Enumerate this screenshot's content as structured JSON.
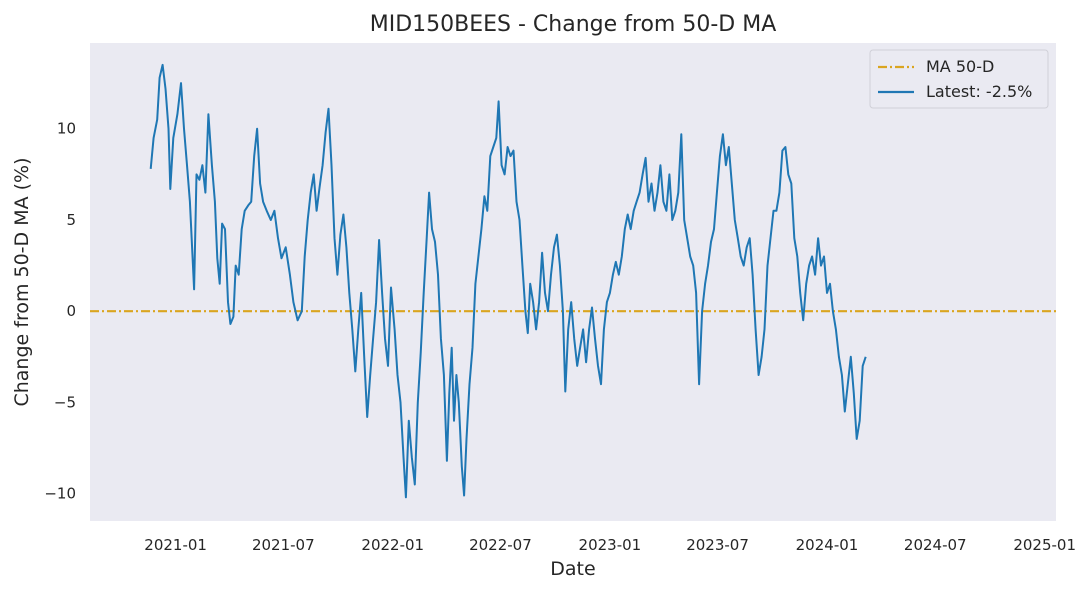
{
  "chart_data": {
    "type": "line",
    "title": "MID150BEES - Change from 50-D MA",
    "xlabel": "Date",
    "ylabel": "Change from 50-D MA (%)",
    "x_ticks": [
      "2021-01",
      "2021-07",
      "2022-01",
      "2022-07",
      "2023-01",
      "2023-07",
      "2024-01",
      "2024-07",
      "2025-01"
    ],
    "y_ticks": [
      -10,
      -5,
      0,
      5,
      10
    ],
    "xlim": [
      "2020-08-10",
      "2025-01-20"
    ],
    "ylim": [
      -11.5,
      14.7
    ],
    "grid": false,
    "legend_position": "top-right",
    "background": "#eaeaf2",
    "series": [
      {
        "name": "MA 50-D",
        "style": "dash-dot",
        "color": "#daa520",
        "points": [
          [
            "2020-08-10",
            0
          ],
          [
            "2025-01-20",
            0
          ]
        ]
      },
      {
        "name": "Latest: -2.5%",
        "style": "solid",
        "color": "#1f77b4",
        "points": [
          [
            "2020-11-20",
            7.8
          ],
          [
            "2020-11-25",
            9.5
          ],
          [
            "2020-12-01",
            10.5
          ],
          [
            "2020-12-05",
            12.8
          ],
          [
            "2020-12-10",
            13.5
          ],
          [
            "2020-12-15",
            12.2
          ],
          [
            "2020-12-20",
            10.0
          ],
          [
            "2020-12-23",
            6.7
          ],
          [
            "2020-12-28",
            9.5
          ],
          [
            "2021-01-04",
            10.8
          ],
          [
            "2021-01-10",
            12.5
          ],
          [
            "2021-01-15",
            10.0
          ],
          [
            "2021-01-20",
            8.0
          ],
          [
            "2021-01-25",
            6.0
          ],
          [
            "2021-02-01",
            1.2
          ],
          [
            "2021-02-05",
            7.5
          ],
          [
            "2021-02-10",
            7.2
          ],
          [
            "2021-02-15",
            8.0
          ],
          [
            "2021-02-20",
            6.5
          ],
          [
            "2021-02-25",
            10.8
          ],
          [
            "2021-03-03",
            8.0
          ],
          [
            "2021-03-08",
            6.0
          ],
          [
            "2021-03-12",
            2.9
          ],
          [
            "2021-03-16",
            1.5
          ],
          [
            "2021-03-20",
            4.8
          ],
          [
            "2021-03-25",
            4.5
          ],
          [
            "2021-03-30",
            0.5
          ],
          [
            "2021-04-03",
            -0.7
          ],
          [
            "2021-04-08",
            -0.3
          ],
          [
            "2021-04-12",
            2.5
          ],
          [
            "2021-04-17",
            2.0
          ],
          [
            "2021-04-22",
            4.5
          ],
          [
            "2021-04-27",
            5.5
          ],
          [
            "2021-05-03",
            5.8
          ],
          [
            "2021-05-08",
            6.0
          ],
          [
            "2021-05-13",
            8.5
          ],
          [
            "2021-05-18",
            10.0
          ],
          [
            "2021-05-23",
            7.0
          ],
          [
            "2021-05-28",
            6.0
          ],
          [
            "2021-06-03",
            5.5
          ],
          [
            "2021-06-10",
            5.0
          ],
          [
            "2021-06-16",
            5.5
          ],
          [
            "2021-06-22",
            4.0
          ],
          [
            "2021-06-28",
            2.9
          ],
          [
            "2021-07-05",
            3.5
          ],
          [
            "2021-07-12",
            2.0
          ],
          [
            "2021-07-18",
            0.5
          ],
          [
            "2021-07-25",
            -0.5
          ],
          [
            "2021-08-01",
            0.0
          ],
          [
            "2021-08-06",
            3.0
          ],
          [
            "2021-08-11",
            5.0
          ],
          [
            "2021-08-16",
            6.5
          ],
          [
            "2021-08-21",
            7.5
          ],
          [
            "2021-08-26",
            5.5
          ],
          [
            "2021-08-31",
            6.8
          ],
          [
            "2021-09-05",
            8.0
          ],
          [
            "2021-09-10",
            9.8
          ],
          [
            "2021-09-15",
            11.1
          ],
          [
            "2021-09-20",
            8.0
          ],
          [
            "2021-09-25",
            4.0
          ],
          [
            "2021-09-30",
            2.0
          ],
          [
            "2021-10-05",
            4.2
          ],
          [
            "2021-10-10",
            5.3
          ],
          [
            "2021-10-15",
            3.5
          ],
          [
            "2021-10-20",
            1.0
          ],
          [
            "2021-10-25",
            -1.0
          ],
          [
            "2021-10-30",
            -3.3
          ],
          [
            "2021-11-04",
            -1.0
          ],
          [
            "2021-11-09",
            1.0
          ],
          [
            "2021-11-14",
            -2.5
          ],
          [
            "2021-11-19",
            -5.8
          ],
          [
            "2021-11-24",
            -3.5
          ],
          [
            "2021-11-29",
            -1.5
          ],
          [
            "2021-12-04",
            0.5
          ],
          [
            "2021-12-09",
            3.9
          ],
          [
            "2021-12-14",
            1.0
          ],
          [
            "2021-12-19",
            -1.5
          ],
          [
            "2021-12-24",
            -3.0
          ],
          [
            "2021-12-29",
            1.3
          ],
          [
            "2022-01-04",
            -1.0
          ],
          [
            "2022-01-09",
            -3.5
          ],
          [
            "2022-01-14",
            -5.0
          ],
          [
            "2022-01-19",
            -8.0
          ],
          [
            "2022-01-23",
            -10.2
          ],
          [
            "2022-01-28",
            -6.0
          ],
          [
            "2022-02-02",
            -8.0
          ],
          [
            "2022-02-07",
            -9.5
          ],
          [
            "2022-02-12",
            -5.0
          ],
          [
            "2022-02-17",
            -2.3
          ],
          [
            "2022-02-22",
            1.0
          ],
          [
            "2022-02-27",
            4.0
          ],
          [
            "2022-03-03",
            6.5
          ],
          [
            "2022-03-08",
            4.5
          ],
          [
            "2022-03-13",
            3.8
          ],
          [
            "2022-03-18",
            2.0
          ],
          [
            "2022-03-23",
            -1.5
          ],
          [
            "2022-03-28",
            -3.5
          ],
          [
            "2022-04-02",
            -8.2
          ],
          [
            "2022-04-06",
            -4.5
          ],
          [
            "2022-04-10",
            -2.0
          ],
          [
            "2022-04-14",
            -6.0
          ],
          [
            "2022-04-18",
            -3.5
          ],
          [
            "2022-04-22",
            -5.0
          ],
          [
            "2022-04-27",
            -8.5
          ],
          [
            "2022-05-01",
            -10.1
          ],
          [
            "2022-05-05",
            -7.0
          ],
          [
            "2022-05-10",
            -4.0
          ],
          [
            "2022-05-15",
            -2.0
          ],
          [
            "2022-05-20",
            1.5
          ],
          [
            "2022-05-25",
            3.0
          ],
          [
            "2022-05-30",
            4.5
          ],
          [
            "2022-06-04",
            6.3
          ],
          [
            "2022-06-09",
            5.5
          ],
          [
            "2022-06-14",
            8.5
          ],
          [
            "2022-06-19",
            9.0
          ],
          [
            "2022-06-24",
            9.5
          ],
          [
            "2022-06-28",
            11.5
          ],
          [
            "2022-07-03",
            8.0
          ],
          [
            "2022-07-08",
            7.5
          ],
          [
            "2022-07-13",
            9.0
          ],
          [
            "2022-07-18",
            8.5
          ],
          [
            "2022-07-23",
            8.8
          ],
          [
            "2022-07-28",
            6.0
          ],
          [
            "2022-08-02",
            5.0
          ],
          [
            "2022-08-07",
            2.5
          ],
          [
            "2022-08-12",
            0.0
          ],
          [
            "2022-08-16",
            -1.2
          ],
          [
            "2022-08-20",
            1.5
          ],
          [
            "2022-08-25",
            0.5
          ],
          [
            "2022-08-30",
            -1.0
          ],
          [
            "2022-09-04",
            0.5
          ],
          [
            "2022-09-09",
            3.2
          ],
          [
            "2022-09-14",
            1.0
          ],
          [
            "2022-09-19",
            0.0
          ],
          [
            "2022-09-24",
            2.0
          ],
          [
            "2022-09-29",
            3.5
          ],
          [
            "2022-10-04",
            4.2
          ],
          [
            "2022-10-09",
            2.5
          ],
          [
            "2022-10-14",
            0.0
          ],
          [
            "2022-10-18",
            -4.4
          ],
          [
            "2022-10-23",
            -1.0
          ],
          [
            "2022-10-28",
            0.5
          ],
          [
            "2022-11-02",
            -1.5
          ],
          [
            "2022-11-07",
            -3.0
          ],
          [
            "2022-11-12",
            -2.0
          ],
          [
            "2022-11-17",
            -1.0
          ],
          [
            "2022-11-22",
            -2.8
          ],
          [
            "2022-11-27",
            -1.0
          ],
          [
            "2022-12-02",
            0.2
          ],
          [
            "2022-12-07",
            -1.5
          ],
          [
            "2022-12-12",
            -3.0
          ],
          [
            "2022-12-17",
            -4.0
          ],
          [
            "2022-12-22",
            -1.0
          ],
          [
            "2022-12-27",
            0.5
          ],
          [
            "2023-01-01",
            1.0
          ],
          [
            "2023-01-06",
            2.0
          ],
          [
            "2023-01-11",
            2.7
          ],
          [
            "2023-01-16",
            2.0
          ],
          [
            "2023-01-21",
            3.0
          ],
          [
            "2023-01-26",
            4.5
          ],
          [
            "2023-01-31",
            5.3
          ],
          [
            "2023-02-05",
            4.5
          ],
          [
            "2023-02-10",
            5.5
          ],
          [
            "2023-02-15",
            6.0
          ],
          [
            "2023-02-20",
            6.5
          ],
          [
            "2023-02-25",
            7.5
          ],
          [
            "2023-03-02",
            8.4
          ],
          [
            "2023-03-07",
            6.0
          ],
          [
            "2023-03-12",
            7.0
          ],
          [
            "2023-03-17",
            5.5
          ],
          [
            "2023-03-22",
            6.5
          ],
          [
            "2023-03-27",
            8.0
          ],
          [
            "2023-04-01",
            6.0
          ],
          [
            "2023-04-06",
            5.5
          ],
          [
            "2023-04-11",
            7.5
          ],
          [
            "2023-04-16",
            5.0
          ],
          [
            "2023-04-21",
            5.5
          ],
          [
            "2023-04-26",
            6.5
          ],
          [
            "2023-05-01",
            9.7
          ],
          [
            "2023-05-06",
            5.0
          ],
          [
            "2023-05-11",
            4.0
          ],
          [
            "2023-05-16",
            3.0
          ],
          [
            "2023-05-21",
            2.5
          ],
          [
            "2023-05-26",
            1.0
          ],
          [
            "2023-05-31",
            -4.0
          ],
          [
            "2023-06-05",
            0.0
          ],
          [
            "2023-06-10",
            1.5
          ],
          [
            "2023-06-15",
            2.5
          ],
          [
            "2023-06-20",
            3.8
          ],
          [
            "2023-06-25",
            4.5
          ],
          [
            "2023-06-30",
            6.5
          ],
          [
            "2023-07-05",
            8.5
          ],
          [
            "2023-07-10",
            9.7
          ],
          [
            "2023-07-15",
            8.0
          ],
          [
            "2023-07-20",
            9.0
          ],
          [
            "2023-07-25",
            7.0
          ],
          [
            "2023-07-30",
            5.0
          ],
          [
            "2023-08-04",
            4.0
          ],
          [
            "2023-08-09",
            3.0
          ],
          [
            "2023-08-14",
            2.5
          ],
          [
            "2023-08-19",
            3.5
          ],
          [
            "2023-08-24",
            4.0
          ],
          [
            "2023-08-29",
            2.0
          ],
          [
            "2023-09-03",
            -1.0
          ],
          [
            "2023-09-08",
            -3.5
          ],
          [
            "2023-09-13",
            -2.5
          ],
          [
            "2023-09-18",
            -1.0
          ],
          [
            "2023-09-23",
            2.5
          ],
          [
            "2023-09-28",
            4.0
          ],
          [
            "2023-10-03",
            5.5
          ],
          [
            "2023-10-08",
            5.5
          ],
          [
            "2023-10-13",
            6.5
          ],
          [
            "2023-10-18",
            8.8
          ],
          [
            "2023-10-23",
            9.0
          ],
          [
            "2023-10-28",
            7.5
          ],
          [
            "2023-11-02",
            7.0
          ],
          [
            "2023-11-07",
            4.0
          ],
          [
            "2023-11-12",
            3.0
          ],
          [
            "2023-11-17",
            1.0
          ],
          [
            "2023-11-22",
            -0.5
          ],
          [
            "2023-11-27",
            1.5
          ],
          [
            "2023-12-02",
            2.5
          ],
          [
            "2023-12-07",
            3.0
          ],
          [
            "2023-12-12",
            2.0
          ],
          [
            "2023-12-17",
            4.0
          ],
          [
            "2023-12-22",
            2.5
          ],
          [
            "2023-12-27",
            3.0
          ],
          [
            "2024-01-01",
            1.0
          ],
          [
            "2024-01-06",
            1.5
          ],
          [
            "2024-01-11",
            0.0
          ],
          [
            "2024-01-16",
            -1.0
          ],
          [
            "2024-01-21",
            -2.5
          ],
          [
            "2024-01-26",
            -3.5
          ],
          [
            "2024-01-31",
            -5.5
          ],
          [
            "2024-02-05",
            -4.0
          ],
          [
            "2024-02-10",
            -2.5
          ],
          [
            "2024-02-15",
            -4.5
          ],
          [
            "2024-02-20",
            -7.0
          ],
          [
            "2024-02-25",
            -6.0
          ],
          [
            "2024-03-01",
            -3.0
          ],
          [
            "2024-03-06",
            -2.5
          ]
        ]
      }
    ]
  },
  "legend": {
    "ma_label": "MA 50-D",
    "latest_label": "Latest: -2.5%"
  }
}
